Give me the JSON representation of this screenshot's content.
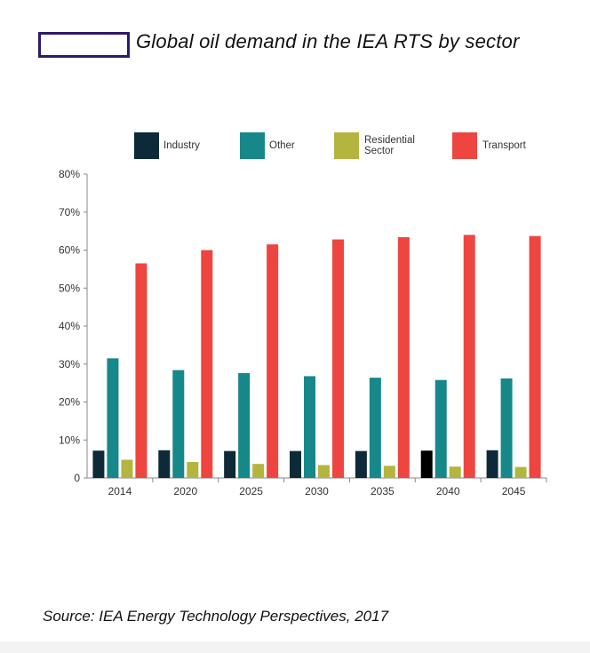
{
  "title": "Global oil demand in the IEA RTS by sector",
  "source": "Source: IEA Energy Technology Perspectives, 2017",
  "logo": "logo-box",
  "chart_data": {
    "type": "bar",
    "title": "",
    "xlabel": "",
    "ylabel": "",
    "categories": [
      "2014",
      "2020",
      "2025",
      "2030",
      "2035",
      "2040",
      "2045"
    ],
    "ylim": [
      0,
      80
    ],
    "yticks": [
      "0",
      "10%",
      "20%",
      "30%",
      "40%",
      "50%",
      "60%",
      "70%",
      "80%"
    ],
    "unit": "%",
    "grid": false,
    "legend_position": "top",
    "series": [
      {
        "name": "Industry",
        "color": "#0e2a38",
        "values": [
          7.2,
          7.3,
          7.1,
          7.1,
          7.1,
          7.2,
          7.3
        ]
      },
      {
        "name": "Other",
        "color": "#16888a",
        "values": [
          31.5,
          28.4,
          27.6,
          26.8,
          26.4,
          25.8,
          26.2
        ]
      },
      {
        "name": "Residential Sector",
        "color": "#b4b53f",
        "values": [
          4.8,
          4.2,
          3.7,
          3.4,
          3.2,
          3.0,
          2.9
        ]
      },
      {
        "name": "Transport",
        "color": "#ee4540",
        "values": [
          56.5,
          60.0,
          61.5,
          62.8,
          63.4,
          64.0,
          63.7
        ]
      }
    ],
    "highlight": {
      "series": 0,
      "index": 5,
      "color": "#000000"
    }
  }
}
